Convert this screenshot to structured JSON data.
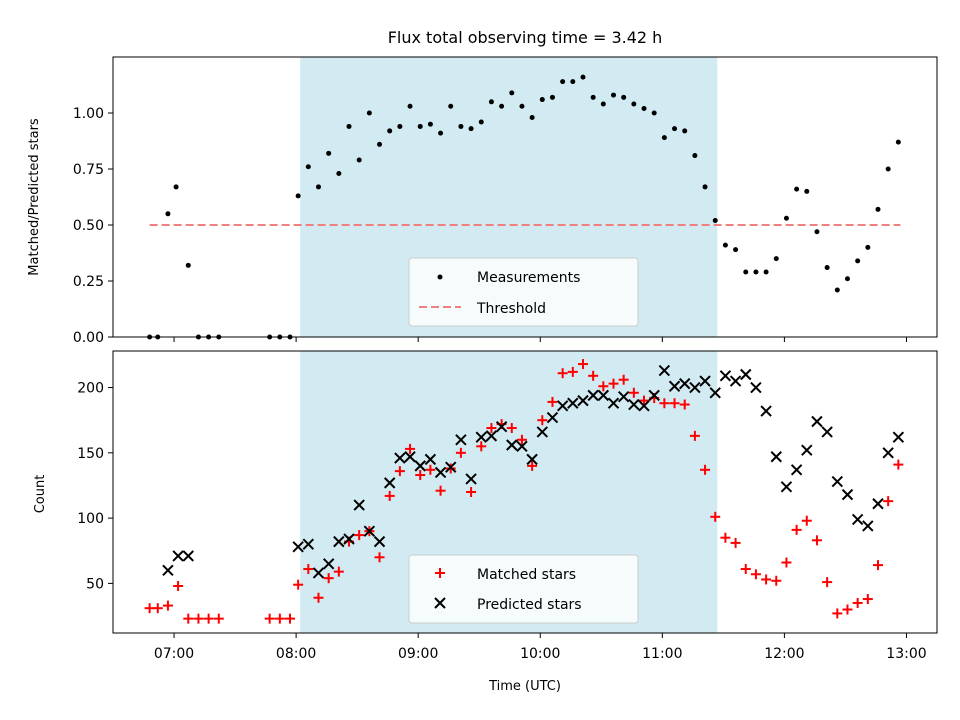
{
  "chart_data": [
    {
      "type": "scatter",
      "title": "Flux total observing time = 3.42 h",
      "ylabel": "Matched/Predicted stars",
      "xlabel": "",
      "xlim": [
        "06:30",
        "13:15"
      ],
      "ylim": [
        0,
        1.25
      ],
      "yticks": [
        "0.00",
        "0.25",
        "0.50",
        "0.75",
        "1.00"
      ],
      "shaded_interval": [
        "08:02",
        "11:27"
      ],
      "shade_color": "#add8e6",
      "legend_position": "lower center",
      "threshold": {
        "name": "Threshold",
        "value": 0.5,
        "x_range": [
          "06:48",
          "12:57"
        ],
        "color": "#f08080"
      },
      "series": [
        {
          "name": "Measurements",
          "color": "#000000",
          "points": [
            [
              "06:48",
              0.0
            ],
            [
              "06:52",
              0.0
            ],
            [
              "06:57",
              0.55
            ],
            [
              "07:01",
              0.67
            ],
            [
              "07:07",
              0.32
            ],
            [
              "07:12",
              0.0
            ],
            [
              "07:17",
              0.0
            ],
            [
              "07:22",
              0.0
            ],
            [
              "07:47",
              0.0
            ],
            [
              "07:52",
              0.0
            ],
            [
              "07:57",
              0.0
            ],
            [
              "08:01",
              0.63
            ],
            [
              "08:06",
              0.76
            ],
            [
              "08:11",
              0.67
            ],
            [
              "08:16",
              0.82
            ],
            [
              "08:21",
              0.73
            ],
            [
              "08:26",
              0.94
            ],
            [
              "08:31",
              0.79
            ],
            [
              "08:36",
              1.0
            ],
            [
              "08:41",
              0.86
            ],
            [
              "08:46",
              0.92
            ],
            [
              "08:51",
              0.94
            ],
            [
              "08:56",
              1.03
            ],
            [
              "09:01",
              0.94
            ],
            [
              "09:06",
              0.95
            ],
            [
              "09:11",
              0.91
            ],
            [
              "09:16",
              1.03
            ],
            [
              "09:21",
              0.94
            ],
            [
              "09:26",
              0.93
            ],
            [
              "09:31",
              0.96
            ],
            [
              "09:36",
              1.05
            ],
            [
              "09:41",
              1.03
            ],
            [
              "09:46",
              1.09
            ],
            [
              "09:51",
              1.03
            ],
            [
              "09:56",
              0.98
            ],
            [
              "10:01",
              1.06
            ],
            [
              "10:06",
              1.07
            ],
            [
              "10:11",
              1.14
            ],
            [
              "10:16",
              1.14
            ],
            [
              "10:21",
              1.16
            ],
            [
              "10:26",
              1.07
            ],
            [
              "10:31",
              1.04
            ],
            [
              "10:36",
              1.08
            ],
            [
              "10:41",
              1.07
            ],
            [
              "10:46",
              1.04
            ],
            [
              "10:51",
              1.02
            ],
            [
              "10:56",
              1.0
            ],
            [
              "11:01",
              0.89
            ],
            [
              "11:06",
              0.93
            ],
            [
              "11:11",
              0.92
            ],
            [
              "11:16",
              0.81
            ],
            [
              "11:21",
              0.67
            ],
            [
              "11:26",
              0.52
            ],
            [
              "11:31",
              0.41
            ],
            [
              "11:36",
              0.39
            ],
            [
              "11:41",
              0.29
            ],
            [
              "11:46",
              0.29
            ],
            [
              "11:51",
              0.29
            ],
            [
              "11:56",
              0.35
            ],
            [
              "12:01",
              0.53
            ],
            [
              "12:06",
              0.66
            ],
            [
              "12:11",
              0.65
            ],
            [
              "12:16",
              0.47
            ],
            [
              "12:21",
              0.31
            ],
            [
              "12:26",
              0.21
            ],
            [
              "12:31",
              0.26
            ],
            [
              "12:36",
              0.34
            ],
            [
              "12:41",
              0.4
            ],
            [
              "12:46",
              0.57
            ],
            [
              "12:51",
              0.75
            ],
            [
              "12:56",
              0.87
            ]
          ]
        }
      ]
    },
    {
      "type": "scatter",
      "title": "",
      "ylabel": "Count",
      "xlabel": "Time (UTC)",
      "xlim": [
        "06:30",
        "13:15"
      ],
      "ylim": [
        12,
        228
      ],
      "xticks": [
        "07:00",
        "08:00",
        "09:00",
        "10:00",
        "11:00",
        "12:00",
        "13:00"
      ],
      "yticks": [
        "50",
        "100",
        "150",
        "200"
      ],
      "shaded_interval": [
        "08:02",
        "11:27"
      ],
      "shade_color": "#add8e6",
      "legend_position": "lower center",
      "series": [
        {
          "name": "Matched stars",
          "marker": "plus",
          "color": "#ff0000",
          "points": [
            [
              "06:48",
              31
            ],
            [
              "06:52",
              31
            ],
            [
              "06:57",
              33
            ],
            [
              "07:02",
              48
            ],
            [
              "07:07",
              23
            ],
            [
              "07:12",
              23
            ],
            [
              "07:17",
              23
            ],
            [
              "07:22",
              23
            ],
            [
              "07:47",
              23
            ],
            [
              "07:52",
              23
            ],
            [
              "07:57",
              23
            ],
            [
              "08:01",
              49
            ],
            [
              "08:06",
              61
            ],
            [
              "08:11",
              39
            ],
            [
              "08:16",
              54
            ],
            [
              "08:21",
              59
            ],
            [
              "08:26",
              82
            ],
            [
              "08:31",
              87
            ],
            [
              "08:36",
              90
            ],
            [
              "08:41",
              70
            ],
            [
              "08:46",
              117
            ],
            [
              "08:51",
              136
            ],
            [
              "08:56",
              153
            ],
            [
              "09:01",
              133
            ],
            [
              "09:06",
              137
            ],
            [
              "09:11",
              121
            ],
            [
              "09:16",
              138
            ],
            [
              "09:21",
              150
            ],
            [
              "09:26",
              120
            ],
            [
              "09:31",
              155
            ],
            [
              "09:36",
              169
            ],
            [
              "09:41",
              172
            ],
            [
              "09:46",
              169
            ],
            [
              "09:51",
              160
            ],
            [
              "09:56",
              140
            ],
            [
              "10:01",
              175
            ],
            [
              "10:06",
              189
            ],
            [
              "10:11",
              211
            ],
            [
              "10:16",
              212
            ],
            [
              "10:21",
              218
            ],
            [
              "10:26",
              209
            ],
            [
              "10:31",
              201
            ],
            [
              "10:36",
              203
            ],
            [
              "10:41",
              206
            ],
            [
              "10:46",
              196
            ],
            [
              "10:51",
              190
            ],
            [
              "10:56",
              192
            ],
            [
              "11:01",
              188
            ],
            [
              "11:06",
              188
            ],
            [
              "11:11",
              187
            ],
            [
              "11:16",
              163
            ],
            [
              "11:21",
              137
            ],
            [
              "11:26",
              101
            ],
            [
              "11:31",
              85
            ],
            [
              "11:36",
              81
            ],
            [
              "11:41",
              61
            ],
            [
              "11:46",
              57
            ],
            [
              "11:51",
              53
            ],
            [
              "11:56",
              52
            ],
            [
              "12:01",
              66
            ],
            [
              "12:06",
              91
            ],
            [
              "12:11",
              98
            ],
            [
              "12:16",
              83
            ],
            [
              "12:21",
              51
            ],
            [
              "12:26",
              27
            ],
            [
              "12:31",
              30
            ],
            [
              "12:36",
              35
            ],
            [
              "12:41",
              38
            ],
            [
              "12:46",
              64
            ],
            [
              "12:51",
              113
            ],
            [
              "12:56",
              141
            ]
          ]
        },
        {
          "name": "Predicted stars",
          "marker": "x",
          "color": "#000000",
          "points": [
            [
              "06:57",
              60
            ],
            [
              "07:02",
              71
            ],
            [
              "07:07",
              71
            ],
            [
              "08:01",
              78
            ],
            [
              "08:06",
              80
            ],
            [
              "08:11",
              58
            ],
            [
              "08:16",
              65
            ],
            [
              "08:21",
              82
            ],
            [
              "08:26",
              84
            ],
            [
              "08:31",
              110
            ],
            [
              "08:36",
              90
            ],
            [
              "08:41",
              82
            ],
            [
              "08:46",
              127
            ],
            [
              "08:51",
              146
            ],
            [
              "08:56",
              147
            ],
            [
              "09:01",
              140
            ],
            [
              "09:06",
              145
            ],
            [
              "09:11",
              135
            ],
            [
              "09:16",
              139
            ],
            [
              "09:21",
              160
            ],
            [
              "09:26",
              130
            ],
            [
              "09:31",
              162
            ],
            [
              "09:36",
              163
            ],
            [
              "09:41",
              170
            ],
            [
              "09:46",
              156
            ],
            [
              "09:51",
              155
            ],
            [
              "09:56",
              145
            ],
            [
              "10:01",
              166
            ],
            [
              "10:06",
              177
            ],
            [
              "10:11",
              186
            ],
            [
              "10:16",
              188
            ],
            [
              "10:21",
              190
            ],
            [
              "10:26",
              194
            ],
            [
              "10:31",
              194
            ],
            [
              "10:36",
              188
            ],
            [
              "10:41",
              193
            ],
            [
              "10:46",
              187
            ],
            [
              "10:51",
              186
            ],
            [
              "10:56",
              194
            ],
            [
              "11:01",
              213
            ],
            [
              "11:06",
              201
            ],
            [
              "11:11",
              203
            ],
            [
              "11:16",
              200
            ],
            [
              "11:21",
              205
            ],
            [
              "11:26",
              196
            ],
            [
              "11:31",
              209
            ],
            [
              "11:36",
              205
            ],
            [
              "11:41",
              210
            ],
            [
              "11:46",
              200
            ],
            [
              "11:51",
              182
            ],
            [
              "11:56",
              147
            ],
            [
              "12:01",
              124
            ],
            [
              "12:06",
              137
            ],
            [
              "12:11",
              152
            ],
            [
              "12:16",
              174
            ],
            [
              "12:21",
              166
            ],
            [
              "12:26",
              128
            ],
            [
              "12:31",
              118
            ],
            [
              "12:36",
              99
            ],
            [
              "12:41",
              94
            ],
            [
              "12:46",
              111
            ],
            [
              "12:51",
              150
            ],
            [
              "12:56",
              162
            ]
          ]
        }
      ]
    }
  ]
}
